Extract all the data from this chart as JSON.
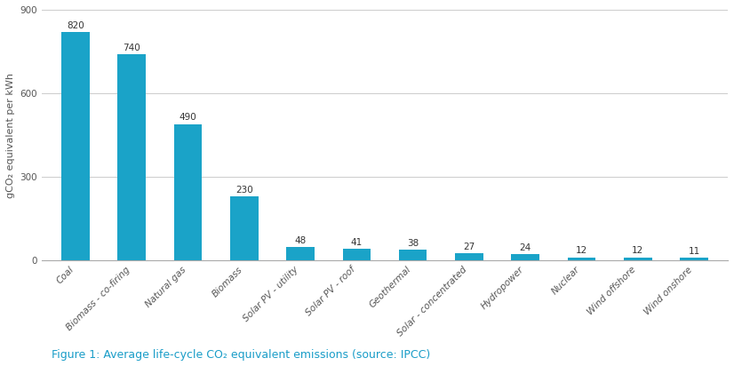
{
  "categories": [
    "Coal",
    "Biomass - co-firing",
    "Natural gas",
    "Biomass",
    "Solar PV - utility",
    "Solar PV - roof",
    "Geothermal",
    "Solar - concentrated",
    "Hydropower",
    "Nuclear",
    "Wind offshore",
    "Wind onshore"
  ],
  "values": [
    820,
    740,
    490,
    230,
    48,
    41,
    38,
    27,
    24,
    12,
    12,
    11
  ],
  "bar_color": "#1aa3c8",
  "ylabel": "gCO₂ equivalent per kWh",
  "ylim": [
    0,
    900
  ],
  "yticks": [
    0,
    300,
    600,
    900
  ],
  "caption": "Figure 1: Average life-cycle CO₂ equivalent emissions (source: IPCC)",
  "caption_color": "#1a9dc8",
  "background_color": "#ffffff",
  "grid_color": "#cccccc",
  "label_fontsize": 7.5,
  "value_fontsize": 7.5,
  "ylabel_fontsize": 8,
  "caption_fontsize": 9,
  "bar_width": 0.5
}
